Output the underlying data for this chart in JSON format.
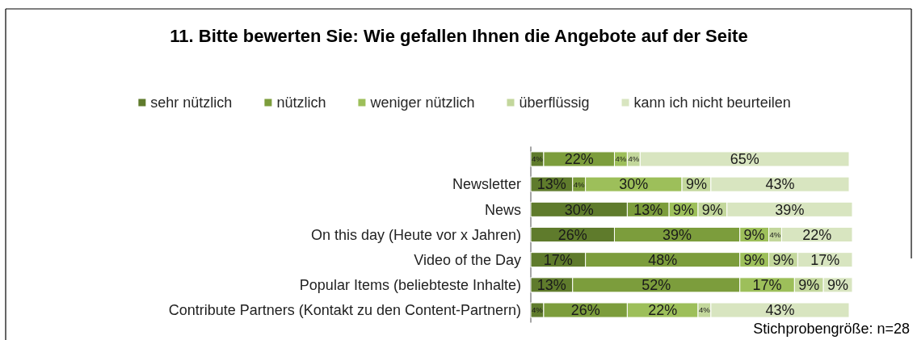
{
  "chart_data": {
    "type": "bar",
    "orientation": "horizontal",
    "stacked": true,
    "title": "11. Bitte bewerten Sie: Wie gefallen Ihnen die Angebote auf der Seite",
    "categories": [
      null,
      "Newsletter",
      "News",
      "On this day (Heute vor x Jahren)",
      "Video of the Day",
      "Popular Items (beliebteste Inhalte)",
      "Contribute Partners (Kontakt zu den Content-Partnern)"
    ],
    "series": [
      {
        "name": "sehr nützlich",
        "color": "#5f7b2c",
        "values": [
          4,
          13,
          30,
          26,
          17,
          13,
          4
        ],
        "value_labels": [
          "4%",
          "13%",
          "30%",
          "26%",
          "17%",
          "13%",
          "4%"
        ]
      },
      {
        "name": "nützlich",
        "color": "#7c9d3c",
        "values": [
          22,
          4,
          13,
          39,
          48,
          52,
          26
        ],
        "value_labels": [
          "22%",
          "4%",
          "13%",
          "39%",
          "48%",
          "52%",
          "26%"
        ]
      },
      {
        "name": "weniger nützlich",
        "color": "#9dbf5a",
        "values": [
          4,
          30,
          9,
          9,
          9,
          17,
          22
        ],
        "value_labels": [
          "4%",
          "30%",
          "9%",
          "9%",
          "9%",
          "17%",
          "22%"
        ]
      },
      {
        "name": "überflüssig",
        "color": "#c3d79c",
        "values": [
          4,
          9,
          9,
          4,
          9,
          9,
          4
        ],
        "value_labels": [
          "4%",
          "9%",
          "9%",
          "4%",
          "9%",
          "9%",
          "4%"
        ]
      },
      {
        "name": "kann ich nicht beurteilen",
        "color": "#d8e5c0",
        "values": [
          65,
          43,
          39,
          22,
          17,
          9,
          43
        ],
        "value_labels": [
          "65%",
          "43%",
          "39%",
          "22%",
          "17%",
          "9%",
          "43%"
        ]
      }
    ],
    "legend": "top",
    "annotations": [
      "Stichprobengröße: n=28"
    ]
  }
}
